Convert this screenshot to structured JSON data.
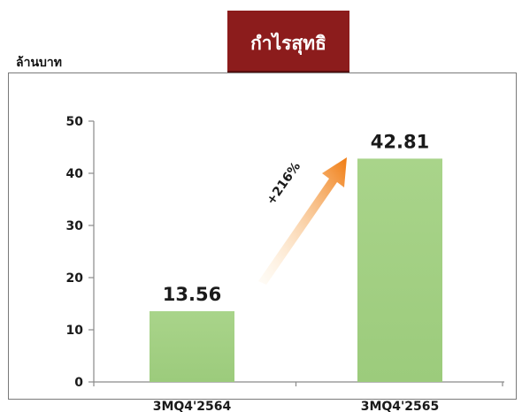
{
  "header": {
    "title": "กำไรสุทธิ",
    "unit_label": "ล้านบาท"
  },
  "colors": {
    "title_bg": "#8c1c1c",
    "bar": "#a9d48a",
    "arrow_start": "#fde9c8",
    "arrow_end": "#f07c12"
  },
  "chart_data": {
    "type": "bar",
    "categories": [
      "3MQ4'2564",
      "3MQ4'2565"
    ],
    "values": [
      13.56,
      42.81
    ],
    "value_labels": [
      "13.56",
      "42.81"
    ],
    "ylim": [
      0,
      50
    ],
    "yticks": [
      0,
      10,
      20,
      30,
      40,
      50
    ],
    "grid": false,
    "annotation": "+216%"
  }
}
